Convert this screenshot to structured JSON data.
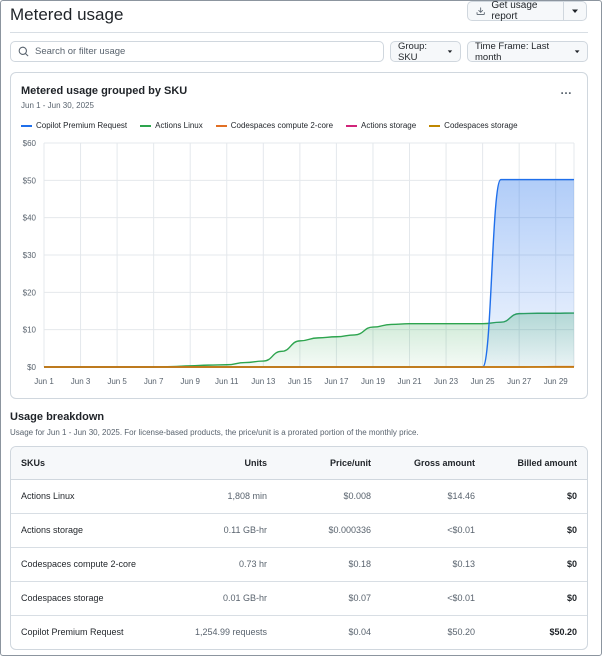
{
  "header": {
    "title": "Metered usage",
    "report_button": "Get usage report"
  },
  "toolbar": {
    "search_placeholder": "Search or filter usage",
    "group_label": "Group: SKU",
    "timeframe_label": "Time Frame: Last month"
  },
  "card": {
    "title": "Metered usage grouped by SKU",
    "date_range": "Jun 1 - Jun 30, 2025",
    "menu_label": "…"
  },
  "colors": {
    "copilot": "#1f6feb",
    "actions_linux": "#2da44e",
    "codespaces_compute": "#e16f24",
    "actions_storage": "#d1247a",
    "codespaces_storage": "#bf8700"
  },
  "chart_data": {
    "type": "area",
    "title": "Metered usage grouped by SKU",
    "subtitle": "Jun 1 - Jun 30, 2025",
    "xlabel": "",
    "ylabel": "",
    "ylim": [
      0,
      60
    ],
    "y_ticks": [
      "$0",
      "$10",
      "$20",
      "$30",
      "$40",
      "$50",
      "$60"
    ],
    "x_ticks": [
      "Jun 1",
      "Jun 3",
      "Jun 5",
      "Jun 7",
      "Jun 9",
      "Jun 11",
      "Jun 13",
      "Jun 15",
      "Jun 17",
      "Jun 19",
      "Jun 21",
      "Jun 23",
      "Jun 25",
      "Jun 27",
      "Jun 29"
    ],
    "x": [
      1,
      2,
      3,
      4,
      5,
      6,
      7,
      8,
      9,
      10,
      11,
      12,
      13,
      14,
      15,
      16,
      17,
      18,
      19,
      20,
      21,
      22,
      23,
      24,
      25,
      26,
      27,
      28,
      29,
      30
    ],
    "grid": true,
    "legend_position": "top-left",
    "series": [
      {
        "name": "Copilot Premium Request",
        "color_key": "copilot",
        "filled": true,
        "values": [
          0,
          0,
          0,
          0,
          0,
          0,
          0,
          0,
          0,
          0,
          0,
          0,
          0,
          0,
          0,
          0,
          0,
          0,
          0,
          0,
          0,
          0,
          0,
          0,
          0,
          50.2,
          50.2,
          50.2,
          50.2,
          50.2
        ]
      },
      {
        "name": "Actions Linux",
        "color_key": "actions_linux",
        "filled": true,
        "values": [
          0,
          0,
          0,
          0,
          0,
          0,
          0,
          0.1,
          0.3,
          0.5,
          0.6,
          1.2,
          1.6,
          4.2,
          7.0,
          7.8,
          8.1,
          8.6,
          10.7,
          11.4,
          11.6,
          11.6,
          11.6,
          11.6,
          11.6,
          12.0,
          14.3,
          14.4,
          14.4,
          14.46
        ]
      },
      {
        "name": "Codespaces compute 2-core",
        "color_key": "codespaces_compute",
        "filled": false,
        "values": [
          0,
          0,
          0,
          0,
          0,
          0,
          0,
          0,
          0,
          0,
          0,
          0,
          0,
          0,
          0,
          0,
          0,
          0,
          0,
          0,
          0,
          0,
          0,
          0,
          0,
          0,
          0,
          0.05,
          0.1,
          0.13
        ]
      },
      {
        "name": "Actions storage",
        "color_key": "actions_storage",
        "filled": false,
        "values": [
          0,
          0,
          0,
          0,
          0,
          0,
          0,
          0,
          0,
          0,
          0,
          0,
          0,
          0,
          0,
          0,
          0,
          0,
          0,
          0,
          0,
          0,
          0,
          0,
          0,
          0,
          0,
          0,
          0,
          0
        ]
      },
      {
        "name": "Codespaces storage",
        "color_key": "codespaces_storage",
        "filled": false,
        "values": [
          0,
          0,
          0,
          0,
          0,
          0,
          0,
          0,
          0,
          0,
          0,
          0,
          0,
          0,
          0,
          0,
          0,
          0,
          0,
          0,
          0,
          0,
          0,
          0,
          0,
          0,
          0,
          0,
          0,
          0
        ]
      }
    ]
  },
  "breakdown": {
    "title": "Usage breakdown",
    "subtitle": "Usage for Jun 1 - Jun 30, 2025. For license-based products, the price/unit is a prorated portion of the monthly price.",
    "columns": [
      "SKUs",
      "Units",
      "Price/unit",
      "Gross amount",
      "Billed amount"
    ],
    "rows": [
      {
        "sku": "Actions Linux",
        "units": "1,808 min",
        "price": "$0.008",
        "gross": "$14.46",
        "billed": "$0"
      },
      {
        "sku": "Actions storage",
        "units": "0.11 GB-hr",
        "price": "$0.000336",
        "gross": "<$0.01",
        "billed": "$0"
      },
      {
        "sku": "Codespaces compute 2-core",
        "units": "0.73 hr",
        "price": "$0.18",
        "gross": "$0.13",
        "billed": "$0"
      },
      {
        "sku": "Codespaces storage",
        "units": "0.01 GB-hr",
        "price": "$0.07",
        "gross": "<$0.01",
        "billed": "$0"
      },
      {
        "sku": "Copilot Premium Request",
        "units": "1,254.99 requests",
        "price": "$0.04",
        "gross": "$50.20",
        "billed": "$50.20"
      }
    ]
  }
}
